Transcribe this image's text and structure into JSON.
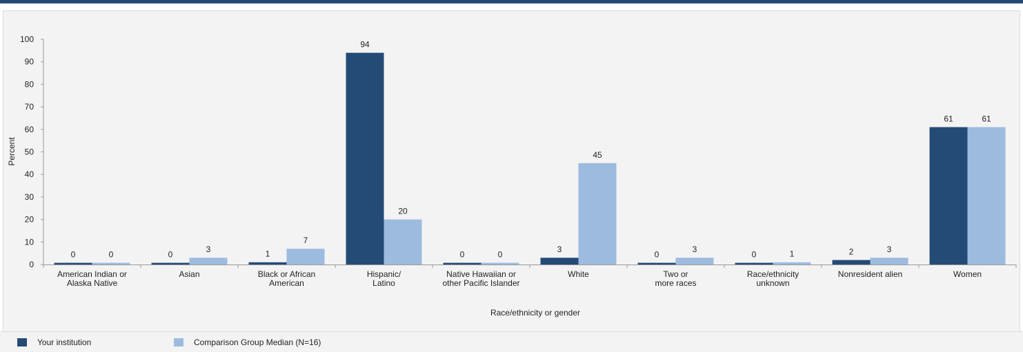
{
  "chart_data": {
    "type": "bar",
    "ylabel": "Percent",
    "xlabel": "Race/ethnicity or gender",
    "ylim": [
      0,
      100
    ],
    "yticks": [
      0,
      10,
      20,
      30,
      40,
      50,
      60,
      70,
      80,
      90,
      100
    ],
    "grid": false,
    "legend_position": "bottom-left",
    "categories": [
      [
        "American Indian or",
        "Alaska Native"
      ],
      [
        "Asian"
      ],
      [
        "Black or African",
        "American"
      ],
      [
        "Hispanic/",
        "Latino"
      ],
      [
        "Native Hawaiian or",
        "other Pacific Islander"
      ],
      [
        "White"
      ],
      [
        "Two or",
        "more races"
      ],
      [
        "Race/ethnicity",
        "unknown"
      ],
      [
        "Nonresident alien"
      ],
      [
        "Women"
      ]
    ],
    "series": [
      {
        "name": "Your institution",
        "color": "#244b76",
        "values": [
          0,
          0,
          1,
          94,
          0,
          3,
          0,
          0,
          2,
          61
        ]
      },
      {
        "name": "Comparison Group Median (N=16)",
        "color": "#9dbbdf",
        "values": [
          0,
          3,
          7,
          20,
          0,
          45,
          3,
          1,
          3,
          61
        ]
      }
    ]
  }
}
